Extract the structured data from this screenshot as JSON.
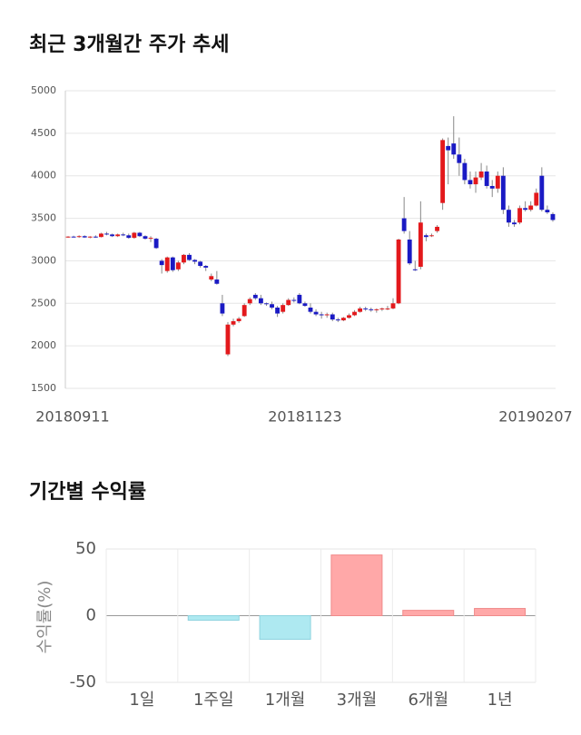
{
  "chart_data": [
    {
      "type": "candlestick",
      "title": "최근 3개월간 주가 추세",
      "categories": [
        "20180911",
        null,
        null,
        null,
        null,
        null,
        null,
        null,
        null,
        null,
        null,
        null,
        null,
        null,
        null,
        null,
        null,
        null,
        null,
        null,
        null,
        null,
        null,
        null,
        null,
        null,
        null,
        null,
        null,
        null,
        null,
        null,
        null,
        null,
        null,
        null,
        null,
        null,
        null,
        null,
        null,
        null,
        null,
        "20181123",
        null,
        null,
        null,
        null,
        null,
        null,
        null,
        null,
        null,
        null,
        null,
        null,
        null,
        null,
        null,
        null,
        null,
        null,
        null,
        null,
        null,
        null,
        null,
        null,
        null,
        null,
        null,
        null,
        null,
        null,
        null,
        null,
        null,
        null,
        null,
        null,
        null,
        null,
        null,
        null,
        null,
        "20190207",
        null,
        null,
        null
      ],
      "open": [
        3280,
        3285,
        3280,
        3290,
        3275,
        3285,
        3280,
        3320,
        3310,
        3290,
        3310,
        3300,
        3270,
        3330,
        3290,
        3260,
        3260,
        3000,
        2880,
        3040,
        2900,
        2980,
        3070,
        3010,
        2990,
        2940,
        2780,
        2780,
        2500,
        1900,
        2250,
        2290,
        2350,
        2500,
        2600,
        2560,
        2500,
        2490,
        2450,
        2400,
        2480,
        2540,
        2600,
        2500,
        2450,
        2400,
        2370,
        2360,
        2370,
        2310,
        2300,
        2330,
        2360,
        2400,
        2440,
        2430,
        2420,
        2430,
        2430,
        2440,
        2500,
        3500,
        3250,
        2900,
        2930,
        3300,
        3300,
        3350,
        3680,
        4350,
        4380,
        4250,
        4150,
        3950,
        3900,
        3980,
        4050,
        3880,
        3850,
        4000,
        3600,
        3450,
        3450,
        3620,
        3600,
        3650,
        4000,
        3600,
        3550
      ],
      "high": [
        3290,
        3295,
        3300,
        3300,
        3290,
        3300,
        3330,
        3340,
        3320,
        3320,
        3330,
        3320,
        3340,
        3340,
        3300,
        3290,
        3270,
        3020,
        3050,
        3050,
        3000,
        3080,
        3090,
        3020,
        3000,
        2950,
        2850,
        2880,
        2600,
        2280,
        2320,
        2340,
        2500,
        2570,
        2620,
        2600,
        2510,
        2520,
        2470,
        2500,
        2560,
        2570,
        2620,
        2520,
        2500,
        2430,
        2400,
        2390,
        2390,
        2330,
        2340,
        2380,
        2420,
        2460,
        2460,
        2450,
        2440,
        2450,
        2470,
        2560,
        3260,
        3750,
        3350,
        3000,
        3700,
        3320,
        3320,
        3420,
        4440,
        4450,
        4700,
        4450,
        4200,
        4050,
        4050,
        4150,
        4120,
        3950,
        4050,
        4100,
        3650,
        3480,
        3650,
        3700,
        3700,
        3850,
        4100,
        3650,
        3570
      ],
      "low": [
        3270,
        3275,
        3270,
        3270,
        3265,
        3270,
        3275,
        3300,
        3280,
        3280,
        3290,
        3260,
        3260,
        3280,
        3250,
        3220,
        3140,
        2850,
        2860,
        2870,
        2880,
        2960,
        3000,
        2960,
        2920,
        2880,
        2760,
        2720,
        2350,
        1880,
        2230,
        2270,
        2340,
        2480,
        2540,
        2480,
        2470,
        2430,
        2340,
        2380,
        2470,
        2510,
        2490,
        2460,
        2380,
        2350,
        2320,
        2330,
        2290,
        2280,
        2290,
        2320,
        2350,
        2390,
        2410,
        2400,
        2390,
        2410,
        2420,
        2430,
        2490,
        3320,
        2950,
        2880,
        2900,
        3230,
        3280,
        3330,
        3600,
        3900,
        4200,
        4000,
        3900,
        3850,
        3800,
        3950,
        3850,
        3750,
        3800,
        3550,
        3400,
        3400,
        3430,
        3580,
        3580,
        3640,
        3580,
        3550,
        3460
      ],
      "close": [
        3285,
        3280,
        3290,
        3275,
        3285,
        3280,
        3320,
        3310,
        3290,
        3310,
        3300,
        3270,
        3330,
        3290,
        3260,
        3270,
        3150,
        2950,
        3040,
        2890,
        2980,
        3070,
        3010,
        2990,
        2940,
        2920,
        2820,
        2730,
        2380,
        2250,
        2290,
        2320,
        2480,
        2550,
        2560,
        2500,
        2490,
        2450,
        2380,
        2480,
        2540,
        2530,
        2500,
        2470,
        2400,
        2370,
        2360,
        2370,
        2310,
        2300,
        2330,
        2360,
        2400,
        2440,
        2430,
        2420,
        2430,
        2440,
        2440,
        2500,
        3250,
        3350,
        2970,
        2890,
        3450,
        3280,
        3300,
        3400,
        4420,
        4300,
        4250,
        4150,
        3950,
        3900,
        3980,
        4050,
        3880,
        3850,
        4000,
        3600,
        3450,
        3430,
        3620,
        3600,
        3650,
        3800,
        3600,
        3570,
        3480
      ],
      "up_color": "#e3191c",
      "down_color": "#1a1ac4",
      "ylim": [
        1500,
        5000
      ],
      "yticks": [
        1500,
        2000,
        2500,
        3000,
        3500,
        4000,
        4500,
        5000
      ],
      "grid": true
    },
    {
      "type": "bar",
      "title": "기간별 수익률",
      "y_label": "수익률(%)",
      "categories": [
        "1일",
        "1주일",
        "1개월",
        "3개월",
        "6개월",
        "1년"
      ],
      "values": [
        0,
        -3.4,
        -17.7,
        45.5,
        4,
        5.4
      ],
      "positive_color": "#ffa8a8",
      "negative_color": "#aee9f1",
      "ylim": [
        -50,
        50
      ],
      "yticks": [
        -50,
        0,
        50
      ],
      "grid": true
    }
  ]
}
